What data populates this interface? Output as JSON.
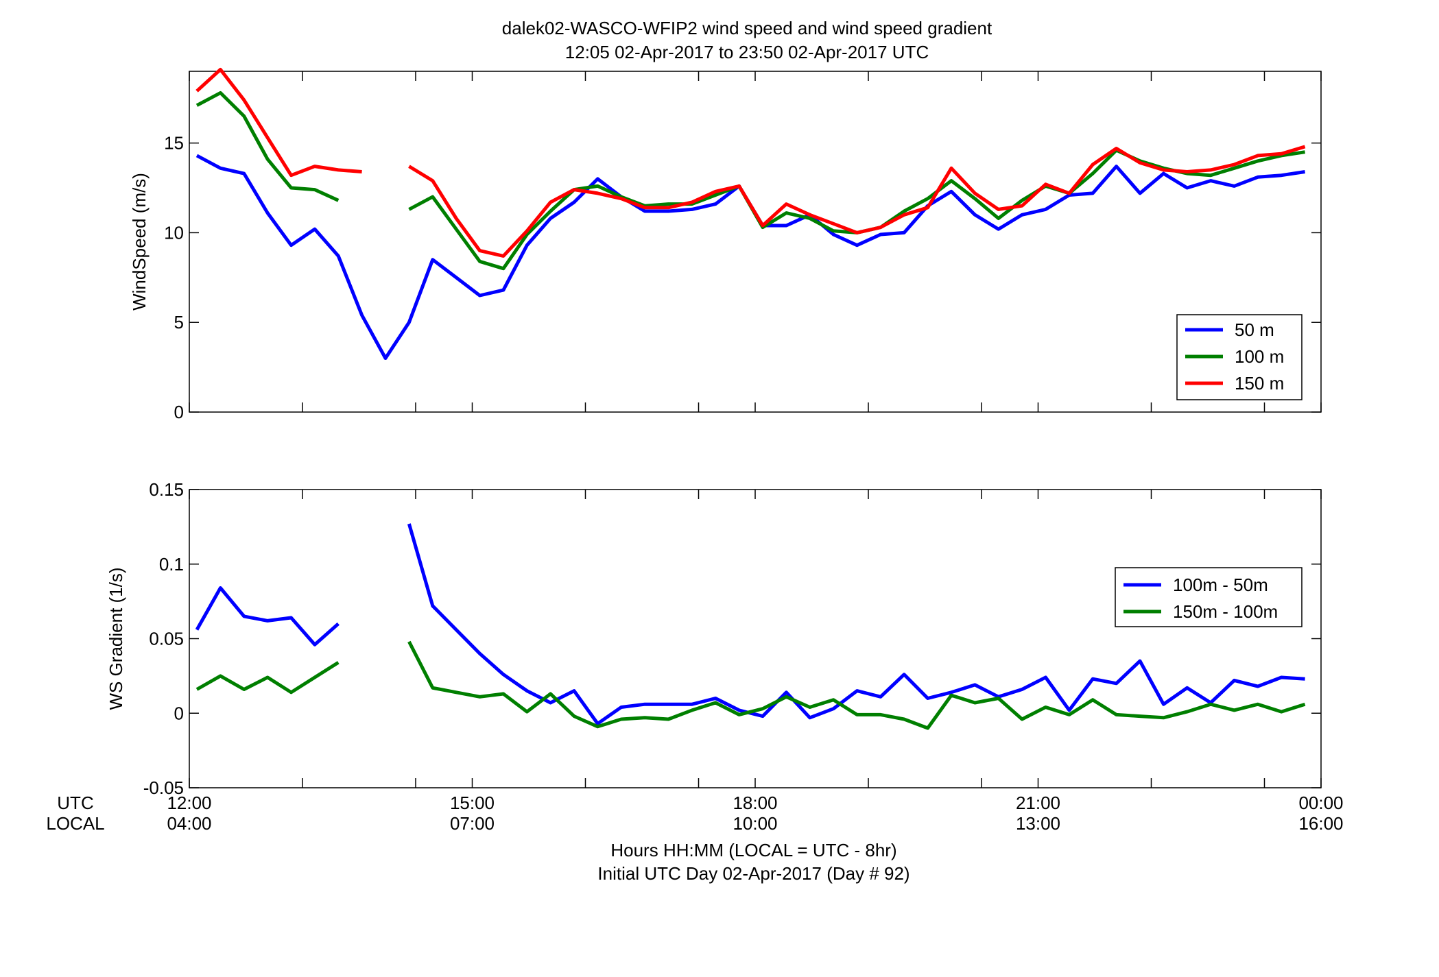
{
  "title_line1": "dalek02-WASCO-WFIP2  wind speed and wind speed gradient",
  "title_line2": "12:05 02-Apr-2017 to 23:50 02-Apr-2017  UTC",
  "xaxis": {
    "row_label_utc": "UTC",
    "row_label_local": "LOCAL",
    "label_line1": "Hours HH:MM  (LOCAL = UTC - 8hr)",
    "label_line2": "Initial UTC Day 02-Apr-2017 (Day # 92)",
    "ticks": [
      12,
      15,
      18,
      21,
      24
    ],
    "tick_labels_utc": [
      "12:00",
      "15:00",
      "18:00",
      "21:00",
      "00:00"
    ],
    "tick_labels_local": [
      "04:00",
      "07:00",
      "10:00",
      "13:00",
      "16:00"
    ],
    "minor_ticks": [
      12.0,
      13.2,
      14.4,
      15.0,
      16.2,
      17.4,
      18.0,
      19.2,
      20.4,
      21.0,
      22.2,
      23.4,
      24.0
    ]
  },
  "chart_data": [
    {
      "type": "line",
      "ylabel": "WindSpeed (m/s)",
      "xlim": [
        12,
        24
      ],
      "ylim": [
        0,
        19
      ],
      "yticks": [
        0,
        5,
        10,
        15
      ],
      "ytick_labels": [
        "0",
        "5",
        "10",
        "15"
      ],
      "grid": false,
      "legend_position": "bottom-right",
      "x": [
        12.08,
        12.33,
        12.58,
        12.83,
        13.08,
        13.33,
        13.58,
        13.83,
        14.08,
        14.33,
        14.58,
        14.83,
        15.08,
        15.33,
        15.58,
        15.83,
        16.08,
        16.33,
        16.58,
        16.83,
        17.08,
        17.33,
        17.58,
        17.83,
        18.08,
        18.33,
        18.58,
        18.83,
        19.08,
        19.33,
        19.58,
        19.83,
        20.08,
        20.33,
        20.58,
        20.83,
        21.08,
        21.33,
        21.58,
        21.83,
        22.08,
        22.33,
        22.58,
        22.83,
        23.08,
        23.33,
        23.58,
        23.83
      ],
      "series": [
        {
          "name": "50 m",
          "color": "#0000ff",
          "values": [
            14.3,
            13.6,
            13.3,
            11.1,
            9.3,
            10.2,
            8.7,
            5.4,
            3.0,
            5.0,
            8.5,
            7.5,
            6.5,
            6.8,
            9.3,
            10.8,
            11.7,
            13.0,
            12.0,
            11.2,
            11.2,
            11.3,
            11.6,
            12.6,
            10.4,
            10.4,
            11.0,
            9.9,
            9.3,
            9.9,
            10.0,
            11.5,
            12.3,
            11.0,
            10.2,
            11.0,
            11.3,
            12.1,
            12.2,
            13.7,
            12.2,
            13.3,
            12.5,
            12.9,
            12.6,
            13.1,
            13.2,
            13.4
          ]
        },
        {
          "name": "100 m",
          "color": "#007f00",
          "values": [
            17.1,
            17.8,
            16.5,
            14.1,
            12.5,
            12.4,
            11.8,
            null,
            null,
            11.3,
            12.0,
            10.2,
            8.4,
            8.0,
            9.9,
            11.2,
            12.4,
            12.6,
            12.0,
            11.5,
            11.6,
            11.6,
            12.1,
            12.6,
            10.3,
            11.1,
            10.8,
            10.1,
            10.0,
            10.3,
            11.2,
            11.9,
            12.9,
            11.9,
            10.8,
            11.8,
            12.6,
            12.2,
            13.3,
            14.6,
            14.0,
            13.6,
            13.3,
            13.2,
            13.6,
            14.0,
            14.3,
            14.5
          ]
        },
        {
          "name": "150 m",
          "color": "#ff0000",
          "values": [
            17.9,
            19.1,
            17.4,
            15.3,
            13.2,
            13.7,
            13.5,
            13.4,
            null,
            13.7,
            12.9,
            10.8,
            9.0,
            8.7,
            10.1,
            11.7,
            12.4,
            12.2,
            11.9,
            11.4,
            11.4,
            11.7,
            12.3,
            12.6,
            10.4,
            11.6,
            11.0,
            10.5,
            10.0,
            10.3,
            11.0,
            11.4,
            13.6,
            12.2,
            11.3,
            11.5,
            12.7,
            12.2,
            13.8,
            14.7,
            13.9,
            13.5,
            13.4,
            13.5,
            13.8,
            14.3,
            14.4,
            14.8
          ]
        }
      ]
    },
    {
      "type": "line",
      "ylabel": "WS Gradient (1/s)",
      "xlim": [
        12,
        24
      ],
      "ylim": [
        -0.05,
        0.15
      ],
      "yticks": [
        -0.05,
        0,
        0.05,
        0.1,
        0.15
      ],
      "ytick_labels": [
        "-0.05",
        "0",
        "0.05",
        "0.1",
        "0.15"
      ],
      "grid": false,
      "legend_position": "right",
      "x": [
        12.08,
        12.33,
        12.58,
        12.83,
        13.08,
        13.33,
        13.58,
        13.83,
        14.08,
        14.33,
        14.58,
        14.83,
        15.08,
        15.33,
        15.58,
        15.83,
        16.08,
        16.33,
        16.58,
        16.83,
        17.08,
        17.33,
        17.58,
        17.83,
        18.08,
        18.33,
        18.58,
        18.83,
        19.08,
        19.33,
        19.58,
        19.83,
        20.08,
        20.33,
        20.58,
        20.83,
        21.08,
        21.33,
        21.58,
        21.83,
        22.08,
        22.33,
        22.58,
        22.83,
        23.08,
        23.33,
        23.58,
        23.83
      ],
      "series": [
        {
          "name": "100m - 50m",
          "color": "#0000ff",
          "values": [
            0.056,
            0.084,
            0.065,
            0.062,
            0.064,
            0.046,
            0.06,
            null,
            null,
            0.127,
            0.072,
            0.056,
            0.04,
            0.026,
            0.015,
            0.007,
            0.015,
            -0.007,
            0.004,
            0.006,
            0.006,
            0.006,
            0.01,
            0.002,
            -0.002,
            0.014,
            -0.003,
            0.003,
            0.015,
            0.011,
            0.026,
            0.01,
            0.014,
            0.019,
            0.011,
            0.016,
            0.024,
            0.002,
            0.023,
            0.02,
            0.035,
            0.006,
            0.017,
            0.007,
            0.022,
            0.018,
            0.024,
            0.023
          ]
        },
        {
          "name": "150m - 100m",
          "color": "#007f00",
          "values": [
            0.016,
            0.025,
            0.016,
            0.024,
            0.014,
            0.024,
            0.034,
            null,
            null,
            0.048,
            0.017,
            0.014,
            0.011,
            0.013,
            0.001,
            0.013,
            -0.002,
            -0.009,
            -0.004,
            -0.003,
            -0.004,
            0.002,
            0.007,
            -0.001,
            0.003,
            0.011,
            0.004,
            0.009,
            -0.001,
            -0.001,
            -0.004,
            -0.01,
            0.012,
            0.007,
            0.01,
            -0.004,
            0.004,
            -0.001,
            0.009,
            -0.001,
            -0.002,
            -0.003,
            0.001,
            0.006,
            0.002,
            0.006,
            0.001,
            0.006
          ]
        }
      ]
    }
  ]
}
